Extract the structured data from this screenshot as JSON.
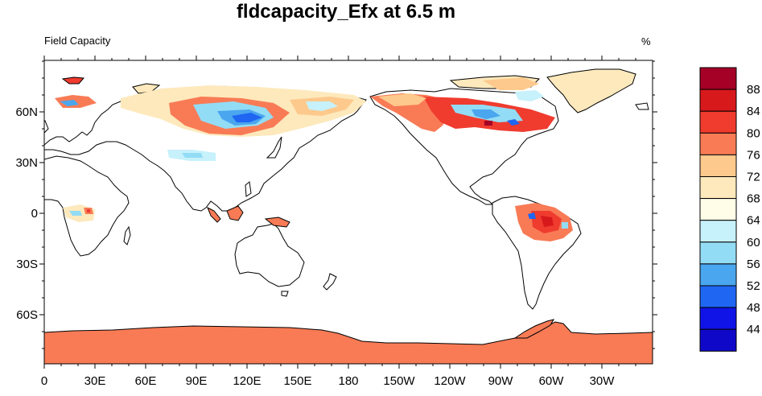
{
  "title": "fldcapacity_Efx at 6.5 m",
  "subtitle_left": "Field Capacity",
  "units": "%",
  "map": {
    "projection": "cylindrical-equidistant",
    "central_longitude": 180,
    "ocean_color": "#ffffff",
    "coastline_color": "#000000",
    "lon_labels": [
      "0",
      "30E",
      "60E",
      "90E",
      "120E",
      "150E",
      "180",
      "150W",
      "120W",
      "90W",
      "60W",
      "30W"
    ],
    "lat_labels": [
      "60N",
      "30N",
      "0",
      "30S",
      "60S"
    ]
  },
  "colorbar": {
    "levels": [
      "88",
      "84",
      "80",
      "76",
      "72",
      "68",
      "64",
      "60",
      "56",
      "52",
      "48",
      "44"
    ],
    "colors": [
      "#a50026",
      "#d7191c",
      "#f03b2f",
      "#f87b56",
      "#fdc98c",
      "#fde9bc",
      "#fffde8",
      "#c7f1fb",
      "#93dcf5",
      "#4aa6ee",
      "#1f66f2",
      "#1014e6",
      "#1008c9"
    ]
  }
}
